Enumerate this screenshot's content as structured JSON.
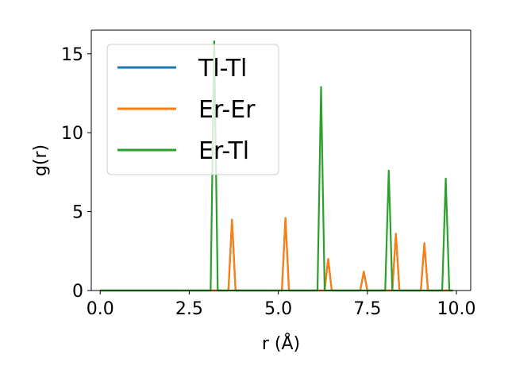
{
  "chart_data": {
    "type": "line",
    "xlabel": "r (Å)",
    "ylabel": "g(r)",
    "xlim": [
      -0.25,
      10.4
    ],
    "ylim": [
      0,
      16.5
    ],
    "xticks": [
      "0.0",
      "2.5",
      "5.0",
      "7.5",
      "10.0"
    ],
    "yticks": [
      "0",
      "5",
      "10",
      "15"
    ],
    "legend_position": "upper-left",
    "grid": false,
    "series": [
      {
        "name": "Tl-Tl",
        "color": "#1f77b4",
        "points": [
          [
            0.0,
            0
          ],
          [
            3.6,
            0
          ],
          [
            3.7,
            4.5
          ],
          [
            3.8,
            0
          ],
          [
            5.1,
            0
          ],
          [
            5.2,
            4.6
          ],
          [
            5.3,
            0
          ],
          [
            6.3,
            0
          ],
          [
            6.4,
            2.0
          ],
          [
            6.5,
            0
          ],
          [
            7.3,
            0
          ],
          [
            7.4,
            1.2
          ],
          [
            7.5,
            0
          ],
          [
            8.2,
            0
          ],
          [
            8.3,
            3.6
          ],
          [
            8.4,
            0
          ],
          [
            9.0,
            0
          ],
          [
            9.1,
            3.0
          ],
          [
            9.2,
            0
          ],
          [
            9.9,
            0
          ]
        ]
      },
      {
        "name": "Er-Er",
        "color": "#ff7f0e",
        "points": [
          [
            0.0,
            0
          ],
          [
            3.6,
            0
          ],
          [
            3.7,
            4.5
          ],
          [
            3.8,
            0
          ],
          [
            5.1,
            0
          ],
          [
            5.2,
            4.6
          ],
          [
            5.3,
            0
          ],
          [
            6.3,
            0
          ],
          [
            6.4,
            2.0
          ],
          [
            6.5,
            0
          ],
          [
            7.3,
            0
          ],
          [
            7.4,
            1.2
          ],
          [
            7.5,
            0
          ],
          [
            8.2,
            0
          ],
          [
            8.3,
            3.6
          ],
          [
            8.4,
            0
          ],
          [
            9.0,
            0
          ],
          [
            9.1,
            3.0
          ],
          [
            9.2,
            0
          ],
          [
            9.9,
            0
          ]
        ]
      },
      {
        "name": "Er-Tl",
        "color": "#2ca02c",
        "points": [
          [
            0.0,
            0
          ],
          [
            3.1,
            0
          ],
          [
            3.2,
            15.8
          ],
          [
            3.3,
            0
          ],
          [
            6.1,
            0
          ],
          [
            6.2,
            12.9
          ],
          [
            6.3,
            0
          ],
          [
            8.0,
            0
          ],
          [
            8.1,
            7.6
          ],
          [
            8.2,
            0
          ],
          [
            9.6,
            0
          ],
          [
            9.7,
            7.1
          ],
          [
            9.8,
            0
          ],
          [
            9.9,
            0
          ]
        ]
      }
    ]
  }
}
